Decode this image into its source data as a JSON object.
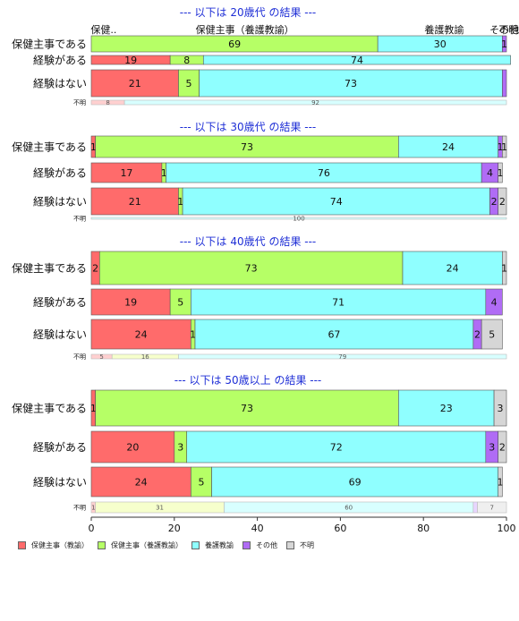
{
  "chart_data": {
    "type": "bar",
    "orientation": "horizontal",
    "stacked": "percent",
    "xlim": [
      0,
      100
    ],
    "x_ticks": [
      0,
      20,
      40,
      60,
      80,
      100
    ],
    "series": [
      {
        "name": "保健主事（教諭）",
        "color": "#FF6B6B"
      },
      {
        "name": "保健主事（養護教諭）",
        "color": "#B6FF66"
      },
      {
        "name": "養護教諭",
        "color": "#8FFFFF"
      },
      {
        "name": "その他",
        "color": "#B06CF5"
      },
      {
        "name": "不明",
        "color": "#D6D6D6"
      }
    ],
    "unknown_colors": [
      "#FFD0D0",
      "#F6FFCC",
      "#D8FFFF",
      "#E8D6FF",
      "#EFEFEF"
    ],
    "panels": [
      {
        "title": "--- 以下は 20歳代 の結果 ---",
        "header_labels": [
          {
            "text": "保健..",
            "x": 3
          },
          {
            "text": "保健主事（養護教諭）",
            "x": 37
          },
          {
            "text": "養護教諭",
            "x": 85
          },
          {
            "text": "その他",
            "x": 99.5
          },
          {
            "text": "不明",
            "x": 100.5
          }
        ],
        "rows": [
          {
            "label": "保健主事である",
            "values": [
              0,
              69,
              30,
              1,
              0
            ],
            "labels": [
              "",
              "69",
              "30",
              "1",
              ""
            ]
          },
          {
            "label": "経験がある",
            "values": [
              19,
              8,
              74,
              0,
              0
            ],
            "labels": [
              "19",
              "8",
              "74",
              "",
              ""
            ]
          },
          {
            "label": "経験はない",
            "values": [
              21,
              5,
              73,
              1,
              0
            ],
            "labels": [
              "21",
              "5",
              "73",
              "",
              ""
            ]
          }
        ],
        "unknown_row": {
          "label": "不明",
          "values": [
            8,
            0,
            92,
            0,
            0
          ],
          "labels": [
            "8",
            "",
            "92",
            "",
            ""
          ]
        }
      },
      {
        "title": "--- 以下は 30歳代 の結果 ---",
        "rows": [
          {
            "label": "保健主事である",
            "values": [
              1,
              73,
              24,
              1,
              1
            ],
            "labels": [
              "1",
              "73",
              "24",
              "1",
              "1"
            ]
          },
          {
            "label": "経験がある",
            "values": [
              17,
              1,
              76,
              4,
              1
            ],
            "labels": [
              "17",
              "1",
              "76",
              "4",
              "1"
            ]
          },
          {
            "label": "経験はない",
            "values": [
              21,
              1,
              74,
              2,
              2
            ],
            "labels": [
              "21",
              "1",
              "74",
              "2",
              "2"
            ]
          }
        ],
        "unknown_row": {
          "label": "不明",
          "values": [
            0,
            0,
            100,
            0,
            0
          ],
          "labels": [
            "",
            "",
            "100",
            "",
            ""
          ]
        }
      },
      {
        "title": "--- 以下は 40歳代 の結果 ---",
        "rows": [
          {
            "label": "保健主事である",
            "values": [
              2,
              73,
              24,
              0,
              1
            ],
            "labels": [
              "2",
              "73",
              "24",
              "",
              "1"
            ]
          },
          {
            "label": "経験がある",
            "values": [
              19,
              5,
              71,
              4,
              0
            ],
            "labels": [
              "19",
              "5",
              "71",
              "4",
              ""
            ]
          },
          {
            "label": "経験はない",
            "values": [
              24,
              1,
              67,
              2,
              5
            ],
            "labels": [
              "24",
              "1",
              "67",
              "2",
              "5"
            ]
          }
        ],
        "unknown_row": {
          "label": "不明",
          "values": [
            5,
            16,
            79,
            0,
            0
          ],
          "labels": [
            "5",
            "16",
            "79",
            "",
            ""
          ]
        }
      },
      {
        "title": "--- 以下は 50歳以上 の結果 ---",
        "rows": [
          {
            "label": "保健主事である",
            "values": [
              1,
              73,
              23,
              0,
              3
            ],
            "labels": [
              "1",
              "73",
              "23",
              "",
              "3"
            ]
          },
          {
            "label": "経験がある",
            "values": [
              20,
              3,
              72,
              3,
              2
            ],
            "labels": [
              "20",
              "3",
              "72",
              "3",
              "2"
            ]
          },
          {
            "label": "経験はない",
            "values": [
              24,
              5,
              69,
              0,
              1
            ],
            "labels": [
              "24",
              "5",
              "69",
              "",
              "1"
            ]
          }
        ],
        "unknown_row": {
          "label": "不明",
          "values": [
            1,
            31,
            60,
            1,
            7
          ],
          "labels": [
            "1",
            "31",
            "60",
            "",
            "7"
          ]
        }
      }
    ]
  }
}
